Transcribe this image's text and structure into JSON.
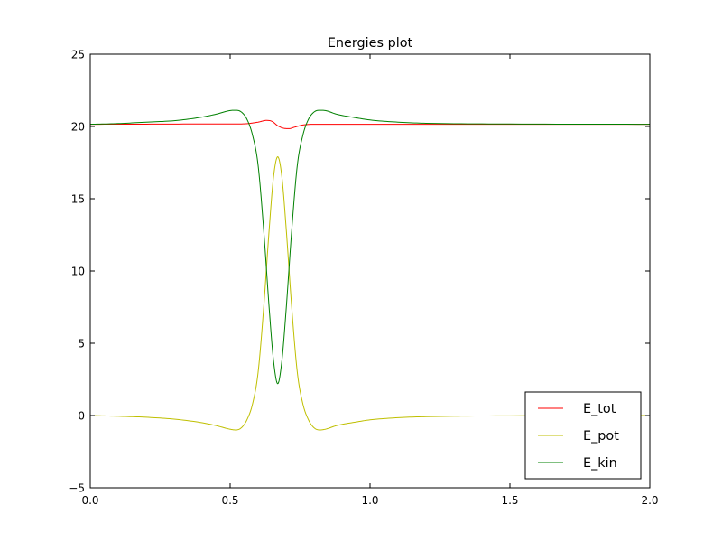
{
  "chart_data": {
    "type": "line",
    "title": "Energies plot",
    "xlabel": "",
    "ylabel": "",
    "xlim": [
      0.0,
      2.0
    ],
    "ylim": [
      -5,
      25
    ],
    "xticks": [
      0.0,
      0.5,
      1.0,
      1.5,
      2.0
    ],
    "xtick_labels": [
      "0.0",
      "0.5",
      "1.0",
      "1.5",
      "2.0"
    ],
    "yticks": [
      -5,
      0,
      5,
      10,
      15,
      20,
      25
    ],
    "ytick_labels": [
      "−5",
      "0",
      "5",
      "10",
      "15",
      "20",
      "25"
    ],
    "grid": false,
    "legend_position": "lower-right",
    "series": [
      {
        "name": "E_tot",
        "color": "#ff0000",
        "x": [
          0.0,
          0.2,
          0.4,
          0.5,
          0.55,
          0.6,
          0.63,
          0.65,
          0.67,
          0.69,
          0.71,
          0.73,
          0.76,
          0.8,
          0.9,
          1.0,
          1.5,
          2.0
        ],
        "y": [
          20.15,
          20.16,
          20.17,
          20.17,
          20.18,
          20.3,
          20.42,
          20.35,
          20.05,
          19.88,
          19.85,
          19.95,
          20.1,
          20.15,
          20.15,
          20.15,
          20.15,
          20.15
        ]
      },
      {
        "name": "E_pot",
        "color": "#bfbf00",
        "x": [
          0.0,
          0.1,
          0.2,
          0.3,
          0.4,
          0.45,
          0.5,
          0.52,
          0.54,
          0.56,
          0.58,
          0.6,
          0.62,
          0.64,
          0.655,
          0.67,
          0.685,
          0.7,
          0.72,
          0.74,
          0.76,
          0.78,
          0.8,
          0.82,
          0.84,
          0.88,
          0.95,
          1.0,
          1.1,
          1.2,
          1.5,
          2.0
        ],
        "y": [
          0.0,
          -0.05,
          -0.12,
          -0.25,
          -0.5,
          -0.7,
          -0.95,
          -1.0,
          -0.85,
          -0.3,
          0.8,
          3.0,
          7.5,
          13.0,
          16.5,
          17.9,
          16.5,
          13.0,
          7.5,
          3.0,
          0.8,
          -0.3,
          -0.85,
          -1.0,
          -0.95,
          -0.7,
          -0.45,
          -0.3,
          -0.15,
          -0.08,
          -0.02,
          0.0
        ]
      },
      {
        "name": "E_kin",
        "color": "#008000",
        "x": [
          0.0,
          0.1,
          0.2,
          0.3,
          0.4,
          0.45,
          0.5,
          0.52,
          0.54,
          0.56,
          0.58,
          0.6,
          0.62,
          0.64,
          0.655,
          0.67,
          0.685,
          0.7,
          0.72,
          0.74,
          0.76,
          0.78,
          0.8,
          0.82,
          0.84,
          0.88,
          0.95,
          1.0,
          1.1,
          1.2,
          1.5,
          2.0
        ],
        "y": [
          20.15,
          20.2,
          20.3,
          20.4,
          20.65,
          20.85,
          21.1,
          21.12,
          21.0,
          20.5,
          19.4,
          17.3,
          12.8,
          7.3,
          3.8,
          2.2,
          3.8,
          7.3,
          12.8,
          17.3,
          19.4,
          20.5,
          21.0,
          21.12,
          21.1,
          20.85,
          20.6,
          20.45,
          20.3,
          20.22,
          20.17,
          20.15
        ]
      }
    ]
  }
}
